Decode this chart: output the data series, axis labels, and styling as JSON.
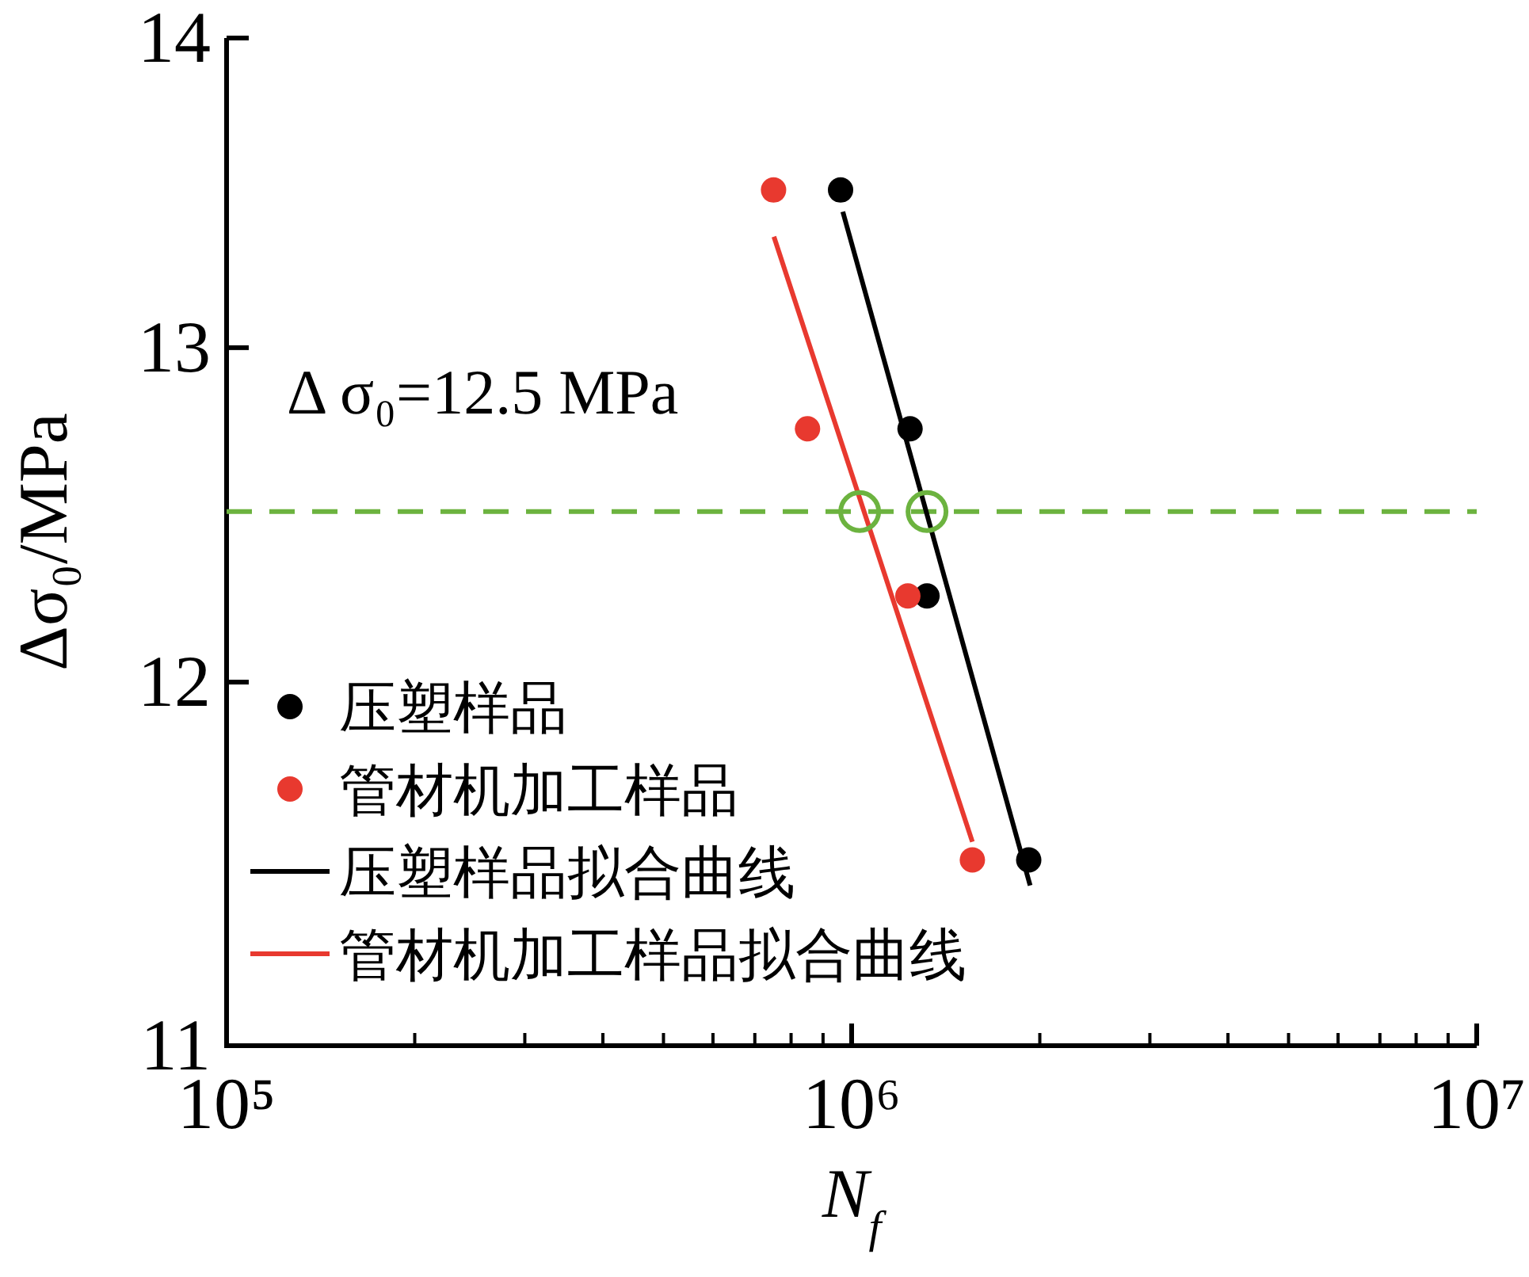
{
  "chart_data": {
    "type": "scatter",
    "xlabel": "N$_{f}$",
    "ylabel": "Δσ₀/MPa",
    "log": "xy",
    "grid": false,
    "legend": "bottom left",
    "xlim": [
      100000,
      10000000
    ],
    "xticks": [
      {
        "value": 100000,
        "label": "10⁵"
      },
      {
        "value": 1000000,
        "label": "10⁶"
      },
      {
        "value": 10000000,
        "label": "10⁷"
      }
    ],
    "ylim": [
      11,
      14
    ],
    "yticks": [
      11,
      12,
      13,
      14
    ],
    "ref_lines": [
      {
        "axis": "y",
        "value": 12.5,
        "label": "Δ σ₀=12.5 MPa",
        "color": "#6cb33f",
        "line_style": "dashed"
      }
    ],
    "series": [
      {
        "name": "压塑样品",
        "marker": "circle",
        "color": "#000000",
        "x": [
          960000,
          1240000,
          1320000,
          1920000
        ],
        "values": [
          13.5,
          12.75,
          12.25,
          11.5
        ]
      },
      {
        "name": "管材机加工样品",
        "marker": "circle",
        "color": "#e8392f",
        "x": [
          750000,
          850000,
          1230000,
          1560000
        ],
        "values": [
          13.5,
          12.75,
          12.25,
          11.5
        ]
      },
      {
        "name": "压塑样品拟合曲线",
        "type": "line",
        "line_style": "solid",
        "color": "#000000",
        "x": [
          968000,
          1930000
        ],
        "values": [
          13.43,
          11.43
        ]
      },
      {
        "name": "管材机加工样品拟合曲线",
        "type": "line",
        "line_style": "solid",
        "color": "#e8392f",
        "x": [
          751000,
          1560000
        ],
        "values": [
          13.35,
          11.55
        ]
      },
      {
        "marker": "circle",
        "color": "#6cb33f",
        "x": [
          1030000,
          1320000
        ],
        "values": [
          12.5,
          12.5
        ]
      }
    ]
  }
}
